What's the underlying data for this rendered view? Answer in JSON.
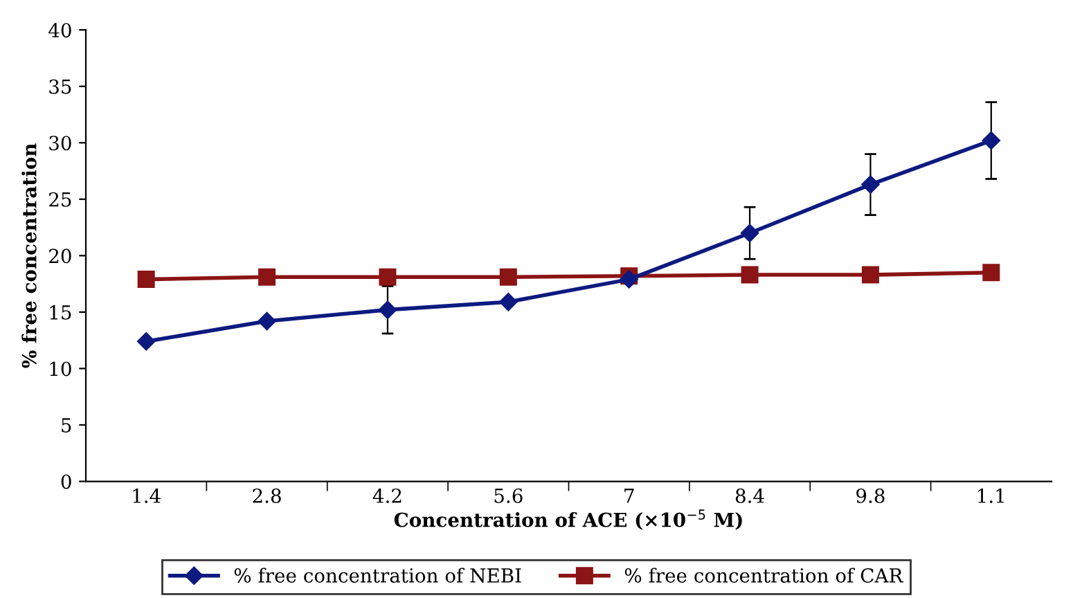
{
  "chart_data": {
    "type": "line",
    "xlabel": "Concentration of ACE (×10$^{−5}$ M)",
    "ylabel": "% free concentration",
    "categories": [
      "1.4",
      "2.8",
      "4.2",
      "5.6",
      "7",
      "8.4",
      "9.8",
      "1.1"
    ],
    "series": [
      {
        "name": "% free concentration of NEBI",
        "color": "#0d1a80",
        "marker": "diamond",
        "values": [
          12.4,
          14.2,
          15.2,
          15.9,
          17.9,
          22.0,
          26.3,
          30.2
        ],
        "errors": [
          null,
          null,
          2.1,
          null,
          null,
          2.3,
          2.7,
          3.4
        ]
      },
      {
        "name": "% free concentration of CAR",
        "color": "#8b1414",
        "marker": "square",
        "values": [
          17.9,
          18.1,
          18.1,
          18.1,
          18.2,
          18.3,
          18.3,
          18.5
        ]
      }
    ],
    "ylim": [
      0,
      40
    ],
    "yticks": [
      0,
      5,
      10,
      15,
      20,
      25,
      30,
      35,
      40
    ],
    "grid": false,
    "legend": "bottom",
    "line_style": "solid"
  }
}
